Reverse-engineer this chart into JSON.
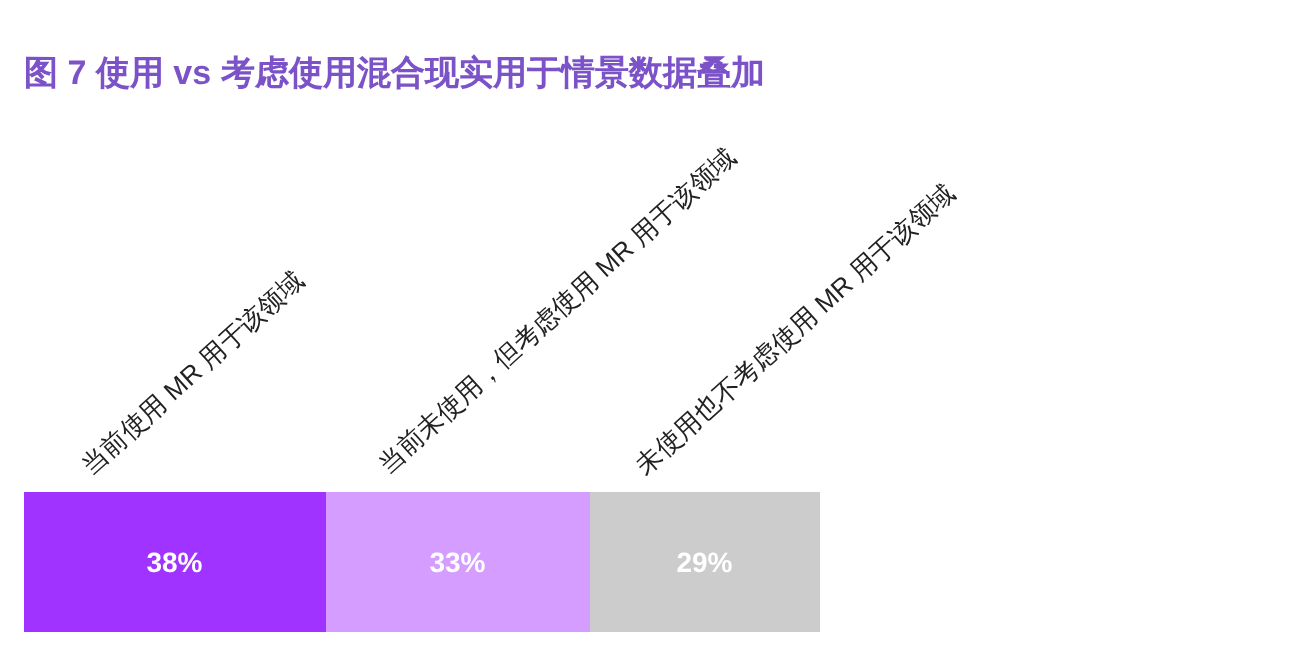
{
  "chart_data": {
    "type": "bar",
    "title": "图 7 使用 vs 考虑使用混合现实用于情景数据叠加",
    "orientation": "horizontal",
    "stacked": true,
    "categories": [
      null
    ],
    "legend": false,
    "series": [
      {
        "name": "当前使用 MR 用于该领域",
        "color": "#a033ff",
        "values": [
          38
        ],
        "value_labels": [
          "38%"
        ]
      },
      {
        "name": "当前未使用，但考虑使用 MR 用于该领域",
        "color": "#d49dff",
        "values": [
          33
        ],
        "value_labels": [
          "33%"
        ]
      },
      {
        "name": "未使用也不考虑使用 MR 用于该领域",
        "color": "#cccccc",
        "values": [
          29
        ],
        "value_labels": [
          "29%"
        ]
      }
    ]
  }
}
